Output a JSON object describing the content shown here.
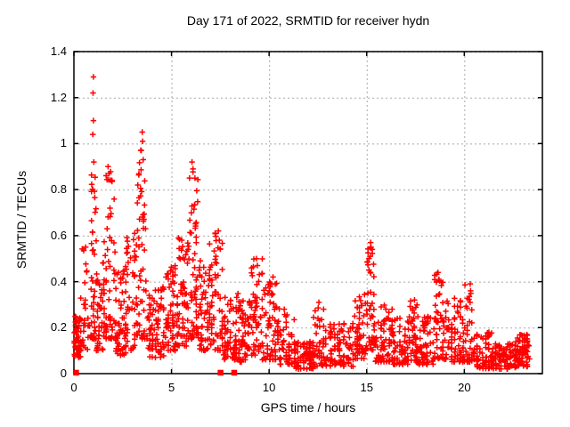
{
  "title": "Day 171 of 2022, SRMTID for receiver hydn",
  "chart_data": {
    "type": "scatter",
    "title": "Day 171 of 2022, SRMTID for receiver hydn",
    "xlabel": "GPS time / hours",
    "ylabel": "SRMTID / TECUs",
    "xlim": [
      0,
      24
    ],
    "ylim": [
      0,
      1.4
    ],
    "x_tick_values": [
      0,
      5,
      10,
      15,
      20
    ],
    "x_tick_labels": [
      "0",
      "5",
      "10",
      "15",
      "20"
    ],
    "y_tick_values": [
      0,
      0.2,
      0.4,
      0.6,
      0.8,
      1.0,
      1.2,
      1.4
    ],
    "y_tick_labels": [
      "0",
      "0.2",
      "0.4",
      "0.6",
      "0.8",
      "1",
      "1.2",
      "1.4"
    ],
    "grid": true,
    "legend": "none",
    "marker_color": "#ff0000",
    "grid_color": "#a8a8a8",
    "axis_color": "#000000",
    "seed": 2022171,
    "series": [
      {
        "name": "srmtid-plus-markers",
        "marker": "plus",
        "color": "#ff0000",
        "peak_points": [
          [
            1.0,
            1.29
          ],
          [
            0.98,
            1.22
          ],
          [
            1.0,
            1.1
          ],
          [
            0.97,
            1.04
          ],
          [
            1.02,
            0.92
          ],
          [
            0.6,
            0.55
          ],
          [
            1.75,
            0.9
          ],
          [
            1.8,
            0.87
          ],
          [
            1.95,
            0.84
          ],
          [
            3.5,
            1.05
          ],
          [
            3.52,
            1.01
          ],
          [
            3.45,
            0.97
          ],
          [
            3.55,
            0.93
          ],
          [
            6.05,
            0.92
          ],
          [
            6.1,
            0.89
          ],
          [
            6.2,
            0.85
          ],
          [
            7.4,
            0.62
          ],
          [
            7.45,
            0.58
          ],
          [
            9.35,
            0.5
          ],
          [
            9.4,
            0.47
          ],
          [
            10.2,
            0.42
          ],
          [
            12.55,
            0.31
          ],
          [
            15.2,
            0.57
          ],
          [
            15.22,
            0.55
          ],
          [
            15.18,
            0.51
          ],
          [
            17.45,
            0.32
          ],
          [
            18.65,
            0.44
          ],
          [
            18.7,
            0.41
          ],
          [
            20.3,
            0.39
          ],
          [
            20.32,
            0.36
          ],
          [
            23.2,
            0.17
          ]
        ],
        "density_clusters": [
          {
            "x0": 0.02,
            "x1": 0.35,
            "y0": 0.07,
            "y1": 0.25,
            "n": 50,
            "b": 1.2
          },
          {
            "x0": 0.35,
            "x1": 0.8,
            "y0": 0.1,
            "y1": 0.55,
            "n": 30,
            "b": 1.8
          },
          {
            "x0": 0.85,
            "x1": 1.15,
            "y0": 0.15,
            "y1": 0.95,
            "n": 45,
            "b": 1.7
          },
          {
            "x0": 1.15,
            "x1": 1.55,
            "y0": 0.1,
            "y1": 0.5,
            "n": 40,
            "b": 1.5
          },
          {
            "x0": 1.55,
            "x1": 2.15,
            "y0": 0.15,
            "y1": 0.88,
            "n": 60,
            "b": 1.8
          },
          {
            "x0": 2.15,
            "x1": 2.65,
            "y0": 0.08,
            "y1": 0.45,
            "n": 50,
            "b": 1.4
          },
          {
            "x0": 2.65,
            "x1": 3.2,
            "y0": 0.1,
            "y1": 0.72,
            "n": 50,
            "b": 1.8
          },
          {
            "x0": 3.25,
            "x1": 3.75,
            "y0": 0.15,
            "y1": 1.0,
            "n": 55,
            "b": 1.7
          },
          {
            "x0": 3.75,
            "x1": 4.6,
            "y0": 0.07,
            "y1": 0.38,
            "n": 75,
            "b": 1.3
          },
          {
            "x0": 4.6,
            "x1": 5.3,
            "y0": 0.1,
            "y1": 0.48,
            "n": 65,
            "b": 1.4
          },
          {
            "x0": 5.3,
            "x1": 5.85,
            "y0": 0.12,
            "y1": 0.6,
            "n": 55,
            "b": 1.5
          },
          {
            "x0": 5.85,
            "x1": 6.35,
            "y0": 0.15,
            "y1": 0.88,
            "n": 55,
            "b": 1.6
          },
          {
            "x0": 6.35,
            "x1": 6.95,
            "y0": 0.1,
            "y1": 0.5,
            "n": 55,
            "b": 1.4
          },
          {
            "x0": 6.95,
            "x1": 7.6,
            "y0": 0.1,
            "y1": 0.62,
            "n": 60,
            "b": 1.6
          },
          {
            "x0": 7.6,
            "x1": 8.45,
            "y0": 0.06,
            "y1": 0.35,
            "n": 70,
            "b": 1.3
          },
          {
            "x0": 8.45,
            "x1": 9.1,
            "y0": 0.05,
            "y1": 0.32,
            "n": 60,
            "b": 1.3
          },
          {
            "x0": 9.1,
            "x1": 9.65,
            "y0": 0.08,
            "y1": 0.5,
            "n": 50,
            "b": 1.5
          },
          {
            "x0": 9.65,
            "x1": 10.45,
            "y0": 0.06,
            "y1": 0.42,
            "n": 65,
            "b": 1.7
          },
          {
            "x0": 10.45,
            "x1": 11.3,
            "y0": 0.04,
            "y1": 0.3,
            "n": 60,
            "b": 1.7
          },
          {
            "x0": 11.3,
            "x1": 12.25,
            "y0": 0.02,
            "y1": 0.14,
            "n": 80,
            "b": 1.2
          },
          {
            "x0": 12.25,
            "x1": 12.9,
            "y0": 0.03,
            "y1": 0.3,
            "n": 50,
            "b": 1.8
          },
          {
            "x0": 12.9,
            "x1": 14.3,
            "y0": 0.03,
            "y1": 0.22,
            "n": 100,
            "b": 1.6
          },
          {
            "x0": 14.3,
            "x1": 14.95,
            "y0": 0.06,
            "y1": 0.35,
            "n": 55,
            "b": 1.5
          },
          {
            "x0": 14.95,
            "x1": 15.45,
            "y0": 0.1,
            "y1": 0.55,
            "n": 50,
            "b": 1.3
          },
          {
            "x0": 15.45,
            "x1": 16.3,
            "y0": 0.05,
            "y1": 0.3,
            "n": 65,
            "b": 1.6
          },
          {
            "x0": 16.3,
            "x1": 17.1,
            "y0": 0.04,
            "y1": 0.25,
            "n": 65,
            "b": 1.6
          },
          {
            "x0": 17.1,
            "x1": 17.6,
            "y0": 0.05,
            "y1": 0.32,
            "n": 45,
            "b": 1.5
          },
          {
            "x0": 17.6,
            "x1": 18.4,
            "y0": 0.04,
            "y1": 0.25,
            "n": 60,
            "b": 1.5
          },
          {
            "x0": 18.4,
            "x1": 18.9,
            "y0": 0.06,
            "y1": 0.44,
            "n": 45,
            "b": 1.6
          },
          {
            "x0": 18.9,
            "x1": 19.8,
            "y0": 0.05,
            "y1": 0.33,
            "n": 65,
            "b": 1.6
          },
          {
            "x0": 19.8,
            "x1": 20.5,
            "y0": 0.05,
            "y1": 0.39,
            "n": 55,
            "b": 1.8
          },
          {
            "x0": 20.5,
            "x1": 21.4,
            "y0": 0.02,
            "y1": 0.18,
            "n": 70,
            "b": 1.4
          },
          {
            "x0": 21.4,
            "x1": 22.6,
            "y0": 0.02,
            "y1": 0.13,
            "n": 95,
            "b": 1.2
          },
          {
            "x0": 22.6,
            "x1": 23.35,
            "y0": 0.03,
            "y1": 0.17,
            "n": 75,
            "b": 1.2
          }
        ]
      },
      {
        "name": "zero-value-square-markers",
        "marker": "square",
        "color": "#ff0000",
        "points": [
          [
            0.1,
            0.005
          ],
          [
            7.5,
            0.005
          ],
          [
            8.2,
            0.005
          ]
        ]
      }
    ]
  }
}
